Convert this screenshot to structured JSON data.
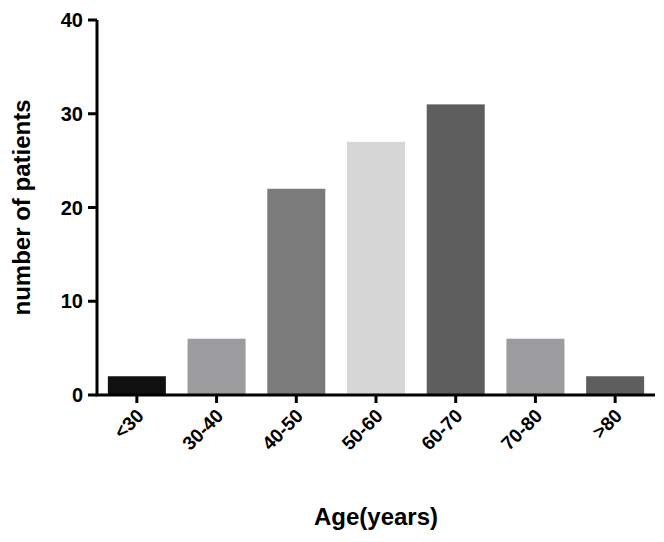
{
  "chart_data": {
    "type": "bar",
    "x_label": "Age(years)",
    "y_label": "number of patients",
    "categories": [
      "<30",
      "30-40",
      "40-50",
      "50-60",
      "60-70",
      "70-80",
      ">80"
    ],
    "values": [
      2,
      6,
      22,
      27,
      31,
      6,
      2
    ],
    "colors": [
      "#111111",
      "#9c9c9f",
      "#7b7b7b",
      "#d6d6d6",
      "#5e5e5e",
      "#9c9c9f",
      "#5e5e5e"
    ],
    "ylim": [
      0,
      40
    ],
    "yticks": [
      0,
      10,
      20,
      30,
      40
    ],
    "grid": false
  }
}
